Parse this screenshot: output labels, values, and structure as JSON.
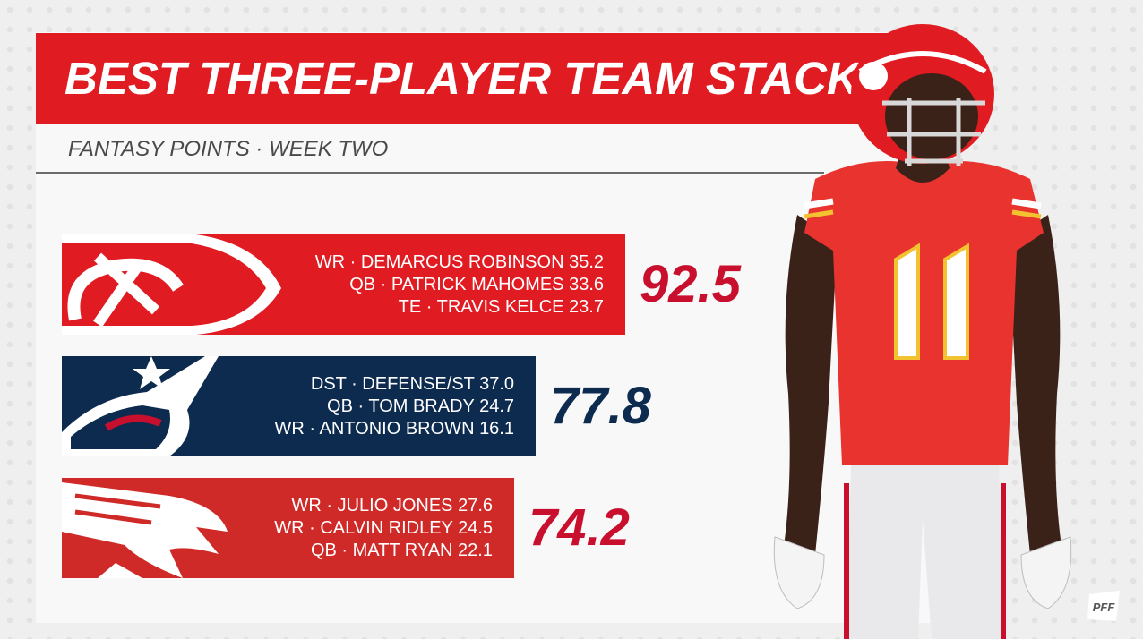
{
  "title": "BEST THREE-PLAYER TEAM STACKS",
  "subtitle": "FANTASY POINTS · WEEK TWO",
  "colors": {
    "title_bar": "#e11b22",
    "chiefs": "#e11b22",
    "patriots": "#0c2b4f",
    "falcons": "#cf2a27",
    "patriots_total": "#0c2b4f",
    "red_total": "#c8102e"
  },
  "chart_data": {
    "type": "bar",
    "orientation": "horizontal",
    "title": "BEST THREE-PLAYER TEAM STACKS",
    "subtitle": "FANTASY POINTS · WEEK TWO",
    "categories": [
      "Chiefs",
      "Patriots",
      "Falcons"
    ],
    "values": [
      92.5,
      77.8,
      74.2
    ],
    "bars": [
      {
        "team_logo": "chiefs-arrowhead-logo",
        "color": "#e11b22",
        "total_color": "#c8102e",
        "total": 92.5,
        "total_label": "92.5",
        "lines": [
          "WR · DEMARCUS ROBINSON 35.2",
          "QB · PATRICK MAHOMES 33.6",
          "TE · TRAVIS KELCE 23.7"
        ]
      },
      {
        "team_logo": "patriots-flying-elvis-logo",
        "color": "#0c2b4f",
        "total_color": "#0c2b4f",
        "total": 77.8,
        "total_label": "77.8",
        "lines": [
          "DST · DEFENSE/ST 37.0",
          "QB · TOM BRADY 24.7",
          "WR · ANTONIO BROWN 16.1"
        ]
      },
      {
        "team_logo": "falcons-logo",
        "color": "#cf2a27",
        "total_color": "#c8102e",
        "total": 74.2,
        "total_label": "74.2",
        "lines": [
          "WR · JULIO JONES 27.6",
          "WR · CALVIN RIDLEY 24.5",
          "QB · MATT RYAN 22.1"
        ]
      }
    ]
  },
  "player_image": {
    "jersey_number": "11",
    "icon": "football-player-photo"
  },
  "brand": {
    "icon": "pff-logo",
    "text": "PFF"
  }
}
